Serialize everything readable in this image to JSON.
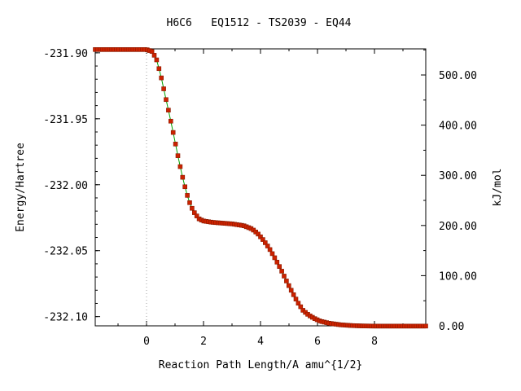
{
  "chart_data": {
    "type": "line",
    "title": "H6C6   EQ1512 - TS2039 - EQ44",
    "xlabel": "Reaction Path Length/A amu^{1/2}",
    "ylabel": "Energy/Hartree",
    "y2label": "kJ/mol",
    "xlim": [
      -1.8,
      9.8
    ],
    "ylim": [
      -232.107,
      -231.897
    ],
    "y2lim": [
      0,
      552
    ],
    "x_ticks": [
      "0",
      "2",
      "4",
      "6",
      "8"
    ],
    "x_tick_values": [
      0,
      2,
      4,
      6,
      8
    ],
    "y_ticks": [
      "-231.90",
      "-231.95",
      "-232.00",
      "-232.05",
      "-232.10"
    ],
    "y_tick_values": [
      -231.9,
      -231.95,
      -232.0,
      -232.05,
      -232.1
    ],
    "y2_ticks": [
      "500.00",
      "400.00",
      "300.00",
      "200.00",
      "100.00",
      "0.00"
    ],
    "y2_tick_values": [
      500,
      400,
      300,
      200,
      100,
      0
    ],
    "ts_marker_x": 0,
    "grid": false,
    "legend": "none",
    "line_color": "#00a000",
    "marker_color": "#cc2200",
    "x": [
      -1.8,
      -1.0,
      -0.5,
      0.0,
      0.2,
      0.35,
      0.5,
      0.65,
      0.8,
      0.95,
      1.1,
      1.25,
      1.4,
      1.55,
      1.7,
      1.85,
      2.0,
      2.3,
      2.7,
      3.0,
      3.4,
      3.7,
      3.9,
      4.1,
      4.3,
      4.5,
      4.7,
      4.9,
      5.1,
      5.3,
      5.5,
      5.7,
      5.9,
      6.1,
      6.4,
      6.8,
      7.2,
      7.6,
      8.0,
      8.5,
      9.0,
      9.8
    ],
    "y": [
      -231.8975,
      -231.8975,
      -231.8975,
      -231.8975,
      -231.899,
      -231.905,
      -231.917,
      -231.932,
      -231.9465,
      -231.962,
      -231.978,
      -231.993,
      -232.006,
      -232.016,
      -232.022,
      -232.026,
      -232.0275,
      -232.0285,
      -232.0292,
      -232.0297,
      -232.031,
      -232.0335,
      -232.037,
      -232.042,
      -232.048,
      -232.0555,
      -232.0635,
      -232.0725,
      -232.081,
      -232.089,
      -232.0955,
      -232.099,
      -232.1015,
      -232.1035,
      -232.105,
      -232.1062,
      -232.1068,
      -232.1071,
      -232.1072,
      -232.1072,
      -232.1072,
      -232.1072
    ]
  }
}
